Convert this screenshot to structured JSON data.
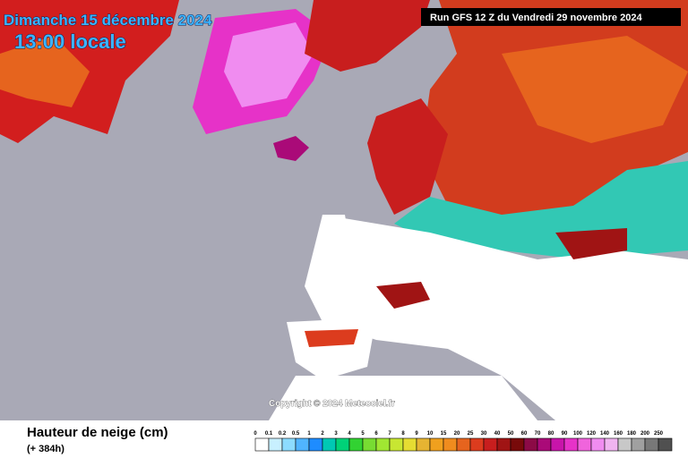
{
  "header": {
    "date": "Dimanche 15 décembre 2024",
    "time": "13:00 locale",
    "run": "Run GFS 12 Z du Vendredi 29 novembre 2024"
  },
  "map": {
    "copyright": "Copyright © 2024 Meteociel.fr"
  },
  "legend": {
    "title": "Hauteur de neige (cm)",
    "subtitle": "(+ 384h)",
    "labels": [
      0,
      0.1,
      0.2,
      0.5,
      1,
      2,
      3,
      4,
      5,
      6,
      7,
      8,
      9,
      10,
      15,
      20,
      25,
      30,
      40,
      50,
      60,
      70,
      80,
      90,
      100,
      120,
      140,
      160,
      180,
      200,
      250
    ],
    "colors": [
      "#ffffff",
      "#c8f0ff",
      "#8cdcff",
      "#50b4ff",
      "#1e8cff",
      "#00c8b4",
      "#00d278",
      "#32d232",
      "#78dc32",
      "#a0e632",
      "#c8e632",
      "#e6dc32",
      "#e6b432",
      "#f0a01e",
      "#f08c1e",
      "#e6641e",
      "#dc3c1e",
      "#c81e1e",
      "#a01414",
      "#780a0a",
      "#8c0a46",
      "#aa0a78",
      "#c814aa",
      "#e632c8",
      "#f064dc",
      "#f08cf0",
      "#f0b4f0",
      "#c8c8c8",
      "#a0a0a0",
      "#787878",
      "#505050"
    ]
  }
}
